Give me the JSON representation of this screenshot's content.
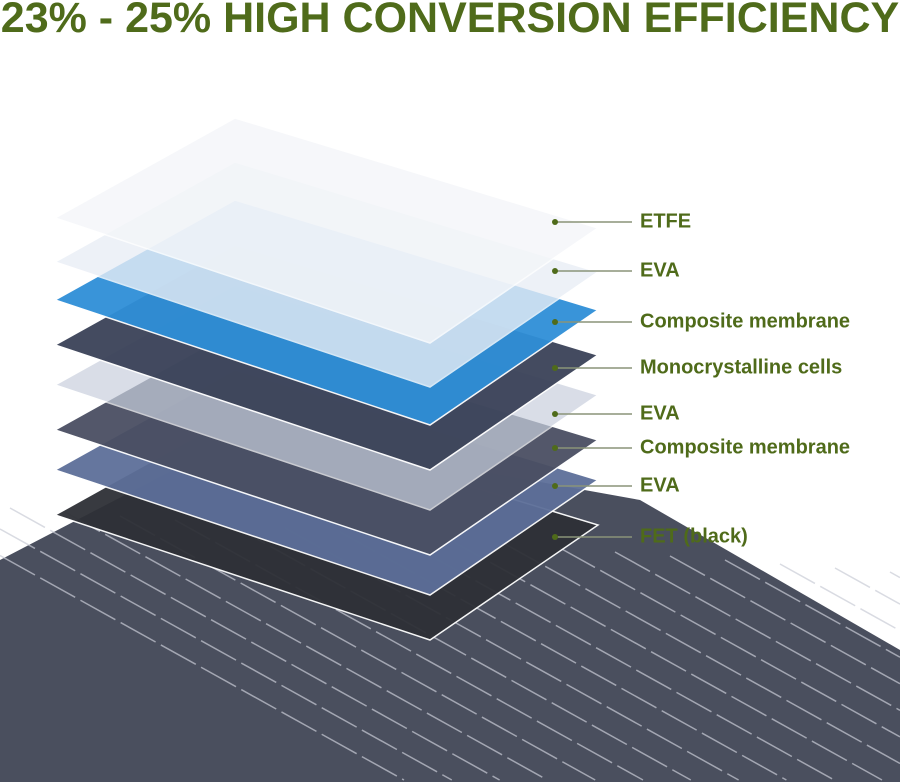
{
  "title": "23% - 25% HIGH CONVERSION EFFICIENCY",
  "accent_color": "#4f6b1a",
  "layers": [
    {
      "label": "ETFE",
      "fill": "#f4f6f9"
    },
    {
      "label": "EVA",
      "fill": "#e9eef6"
    },
    {
      "label": "Composite membrane",
      "fill": "#2f8fd8"
    },
    {
      "label": "Monocrystalline cells",
      "fill": "#3a4258"
    },
    {
      "label": "EVA",
      "fill": "#c9d0de"
    },
    {
      "label": "Composite membrane",
      "fill": "#4a4f63"
    },
    {
      "label": "EVA",
      "fill": "#5d6f99"
    },
    {
      "label": "FET (black)",
      "fill": "#2e3036"
    }
  ]
}
